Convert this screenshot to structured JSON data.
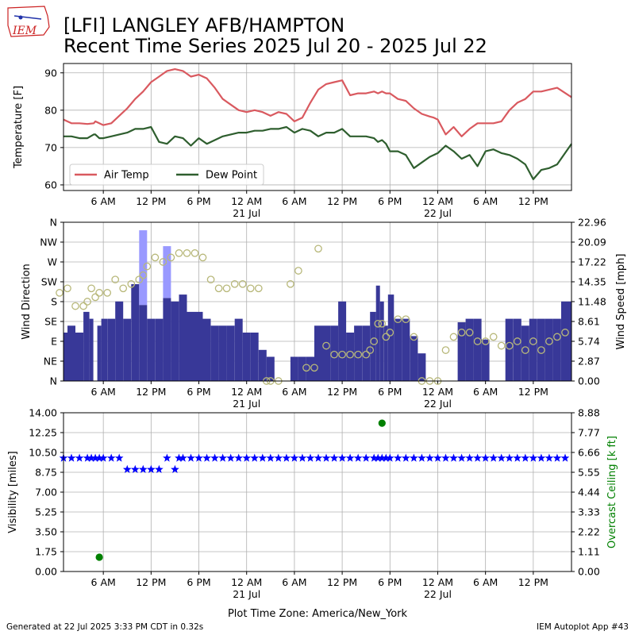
{
  "header": {
    "title_line1": "[LFI] LANGLEY AFB/HAMPTON",
    "title_line2": "Recent Time Series 2025 Jul 20 - 2025 Jul 22",
    "logo_text": "IEM"
  },
  "footer": {
    "generated": "Generated at 22 Jul 2025 3:33 PM CDT in 0.32s",
    "app": "IEM Autoplot App #43",
    "timezone_label": "Plot Time Zone: America/New_York"
  },
  "colors": {
    "air_temp": "#d9595f",
    "dew_point": "#2e5e2e",
    "wind_speed_bar": "#383898",
    "wind_gust_bar": "#9999ff",
    "wind_dir_marker": "#b8b87a",
    "visibility": "#0000ff",
    "ceiling": "#008000",
    "grid": "#b0b0b0"
  },
  "chart_data": [
    {
      "type": "line",
      "x_axis": {
        "unit": "hours since 2025-07-20 00:00 America/New_York",
        "range": [
          1,
          64.8
        ],
        "tick_positions": [
          6,
          12,
          18,
          24,
          30,
          36,
          42,
          48,
          54,
          60
        ],
        "tick_labels": [
          "6 AM",
          "12 PM",
          "6 PM",
          "12 AM",
          "6 AM",
          "12 PM",
          "6 PM",
          "12 AM",
          "6 AM",
          "12 PM"
        ],
        "date_labels": [
          {
            "at": 24,
            "text": "21 Jul"
          },
          {
            "at": 48,
            "text": "22 Jul"
          }
        ]
      },
      "ylabel": "Temperature [F]",
      "ylim": [
        58.5,
        92.5
      ],
      "yticks": [
        60,
        70,
        80,
        90
      ],
      "grid": true,
      "legend": "lower-left",
      "series": [
        {
          "name": "Air Temp",
          "color_key": "air_temp",
          "x": [
            1,
            2,
            3,
            4,
            4.8,
            5,
            5.5,
            6,
            7,
            8,
            9,
            10,
            11,
            12,
            13,
            14,
            15,
            16,
            17,
            18,
            19,
            20,
            21,
            22,
            23,
            24,
            25,
            26,
            27,
            28,
            29,
            30,
            31,
            32,
            33,
            34,
            35,
            36,
            37,
            38,
            39,
            40,
            40.5,
            41,
            41.5,
            42,
            43,
            44,
            45,
            46,
            47,
            47.5,
            48,
            49,
            50,
            51,
            52,
            53,
            54,
            55,
            56,
            57,
            58,
            59,
            60,
            61,
            62,
            63,
            64.8
          ],
          "values": [
            77.5,
            76.5,
            76.5,
            76.3,
            76.5,
            77.0,
            76.5,
            76.0,
            76.5,
            78.5,
            80.5,
            83.0,
            85.0,
            87.5,
            89.0,
            90.5,
            91.0,
            90.5,
            89.0,
            89.5,
            88.5,
            86.0,
            83.0,
            81.5,
            80.0,
            79.5,
            80.0,
            79.5,
            78.5,
            79.5,
            79.0,
            77.0,
            78.0,
            82.0,
            85.5,
            87.0,
            87.5,
            88.0,
            84.0,
            84.5,
            84.5,
            85.0,
            84.5,
            85.0,
            84.5,
            84.5,
            83.0,
            82.5,
            80.5,
            79.0,
            78.3,
            78.0,
            77.5,
            73.5,
            75.5,
            73.0,
            75.0,
            76.5,
            76.5,
            76.5,
            77.0,
            80.0,
            82.0,
            83.0,
            85.0,
            85.0,
            85.5,
            86.0,
            83.5
          ]
        },
        {
          "name": "Dew Point",
          "color_key": "dew_point",
          "x": [
            1,
            2,
            3,
            4,
            4.8,
            5,
            5.5,
            6,
            7,
            8,
            9,
            10,
            11,
            12,
            13,
            14,
            15,
            16,
            17,
            18,
            19,
            20,
            21,
            22,
            23,
            24,
            25,
            26,
            27,
            28,
            29,
            30,
            31,
            32,
            33,
            34,
            35,
            36,
            37,
            38,
            39,
            40,
            40.5,
            41,
            41.5,
            42,
            43,
            44,
            45,
            46,
            47,
            47.5,
            48,
            49,
            50,
            51,
            52,
            53,
            54,
            55,
            56,
            57,
            58,
            59,
            60,
            61,
            62,
            63,
            64.8
          ],
          "values": [
            73.0,
            73.0,
            72.5,
            72.5,
            73.5,
            73.5,
            72.5,
            72.5,
            73.0,
            73.5,
            74.0,
            75.0,
            75.0,
            75.5,
            71.5,
            71.0,
            73.0,
            72.5,
            70.5,
            72.5,
            71.0,
            72.0,
            73.0,
            73.5,
            74.0,
            74.0,
            74.5,
            74.5,
            75.0,
            75.0,
            75.5,
            74.0,
            75.0,
            74.5,
            73.0,
            74.0,
            74.0,
            75.0,
            73.0,
            73.0,
            73.0,
            72.5,
            71.5,
            72.0,
            71.0,
            69.0,
            69.0,
            68.0,
            64.5,
            66.0,
            67.5,
            68.0,
            68.5,
            70.5,
            69.0,
            67.0,
            68.0,
            65.0,
            69.0,
            69.5,
            68.5,
            68.0,
            67.0,
            65.5,
            61.5,
            64.0,
            64.5,
            65.5,
            71.0
          ]
        }
      ]
    },
    {
      "type": "bar",
      "ylabel": "Wind Direction",
      "y2label": "Wind Speed [mph]",
      "y_dir_ticks": [
        "N",
        "NE",
        "E",
        "SE",
        "S",
        "SW",
        "W",
        "NW",
        "N"
      ],
      "y_dir_range": [
        0,
        360
      ],
      "y2ticks": [
        "0.00",
        "2.87",
        "5.74",
        "8.61",
        "11.48",
        "14.35",
        "17.22",
        "20.09",
        "22.96"
      ],
      "y2lim": [
        0,
        22.96
      ],
      "grid": true,
      "wind_speed": {
        "x": [
          1,
          2,
          3,
          4,
          4.5,
          5,
          5.5,
          6,
          7,
          8,
          9,
          10,
          11,
          12,
          13,
          14,
          15,
          16,
          17,
          18,
          19,
          20,
          21,
          22,
          23,
          24,
          25,
          26,
          27,
          28,
          29,
          30,
          31,
          32,
          33,
          34,
          35,
          36,
          37,
          38,
          39,
          40,
          40.5,
          41,
          41.5,
          42,
          43,
          44,
          45,
          46,
          47,
          48,
          49,
          50,
          51,
          52,
          53,
          54,
          55,
          56,
          57,
          58,
          59,
          60,
          61,
          62,
          63,
          64
        ],
        "values": [
          7,
          8,
          7,
          10,
          9,
          0,
          8,
          9,
          9,
          11.5,
          9,
          14,
          11,
          9,
          9,
          12,
          11.5,
          12.5,
          10,
          10,
          9,
          8,
          8,
          8,
          9,
          7,
          7,
          4.5,
          3.5,
          0,
          0,
          3.5,
          3.5,
          3.5,
          8,
          8,
          8,
          11.5,
          7,
          8,
          8,
          10,
          13.8,
          11.5,
          8,
          12.5,
          9,
          9,
          6.5,
          4,
          0,
          0,
          0,
          0,
          8.5,
          9,
          9,
          6,
          0,
          0,
          9,
          9,
          8,
          9,
          9,
          9,
          9,
          11.5
        ],
        "color_key": "wind_speed_bar"
      },
      "wind_gust": {
        "x": [
          11,
          14
        ],
        "values": [
          21.8,
          19.5
        ],
        "color_key": "wind_gust_bar"
      },
      "wind_direction": {
        "x": [
          0.5,
          1.5,
          2.5,
          3.5,
          4.0,
          4.5,
          5.0,
          5.5,
          6.5,
          7.5,
          8.5,
          9.5,
          10.5,
          11.0,
          11.5,
          12.5,
          13.5,
          14.5,
          15.5,
          16.5,
          17.5,
          18.5,
          19.5,
          20.5,
          21.5,
          22.5,
          23.5,
          24.5,
          25.5,
          26.5,
          27.0,
          28.0,
          29.5,
          30.5,
          31.5,
          32.5,
          33.0,
          34.0,
          35.0,
          36.0,
          37.0,
          38.0,
          39.0,
          39.5,
          40.0,
          40.5,
          41.0,
          41.5,
          42.0,
          43.0,
          44.0,
          45.0,
          46.0,
          47.0,
          48.0,
          49.0,
          50.0,
          51.0,
          52.0,
          53.0,
          54.0,
          55.0,
          56.0,
          57.0,
          58.0,
          59.0,
          60.0,
          61.0,
          62.0,
          63.0,
          64.0
        ],
        "values": [
          200,
          210,
          170,
          170,
          180,
          210,
          190,
          200,
          200,
          230,
          210,
          220,
          230,
          240,
          260,
          280,
          270,
          280,
          290,
          290,
          290,
          280,
          230,
          210,
          210,
          220,
          220,
          210,
          210,
          0,
          0,
          0,
          220,
          250,
          30,
          30,
          300,
          80,
          60,
          60,
          60,
          60,
          60,
          70,
          90,
          130,
          130,
          100,
          110,
          140,
          140,
          100,
          0,
          0,
          0,
          70,
          100,
          110,
          110,
          90,
          90,
          100,
          80,
          80,
          90,
          70,
          90,
          70,
          90,
          100,
          110
        ],
        "color_key": "wind_dir_marker"
      }
    },
    {
      "type": "scatter",
      "ylabel": "Visibility [miles]",
      "y2label": "Overcast Ceiling [k ft]",
      "ylim": [
        0,
        14
      ],
      "yticks": [
        "0.00",
        "1.75",
        "3.50",
        "5.25",
        "7.00",
        "8.75",
        "10.50",
        "12.25",
        "14.00"
      ],
      "y2ticks": [
        "0.00",
        "1.11",
        "2.22",
        "3.33",
        "4.44",
        "5.55",
        "6.66",
        "7.77",
        "8.88"
      ],
      "y2lim": [
        0,
        8.88
      ],
      "grid": true,
      "visibility": {
        "x": [
          1,
          2,
          3,
          4,
          4.5,
          5,
          5.5,
          6,
          7,
          8,
          9,
          10,
          11,
          12,
          13,
          14,
          15,
          15.5,
          16,
          17,
          18,
          19,
          20,
          21,
          22,
          23,
          24,
          25,
          26,
          27,
          28,
          29,
          30,
          31,
          32,
          33,
          34,
          35,
          36,
          37,
          38,
          39,
          40,
          40.5,
          41,
          41.5,
          42,
          43,
          44,
          45,
          46,
          47,
          48,
          49,
          50,
          51,
          52,
          53,
          54,
          55,
          56,
          57,
          58,
          59,
          60,
          61,
          62,
          63,
          64
        ],
        "values": [
          10,
          10,
          10,
          10,
          10,
          10,
          10,
          10,
          10,
          10,
          9,
          9,
          9,
          9,
          9,
          10,
          9,
          10,
          10,
          10,
          10,
          10,
          10,
          10,
          10,
          10,
          10,
          10,
          10,
          10,
          10,
          10,
          10,
          10,
          10,
          10,
          10,
          10,
          10,
          10,
          10,
          10,
          10,
          10,
          10,
          10,
          10,
          10,
          10,
          10,
          10,
          10,
          10,
          10,
          10,
          10,
          10,
          10,
          10,
          10,
          10,
          10,
          10,
          10,
          10,
          10,
          10,
          10,
          10
        ],
        "color_key": "visibility"
      },
      "ceiling": {
        "x": [
          5.5,
          41
        ],
        "values": [
          0.8,
          8.3
        ],
        "color_key": "ceiling"
      }
    }
  ]
}
